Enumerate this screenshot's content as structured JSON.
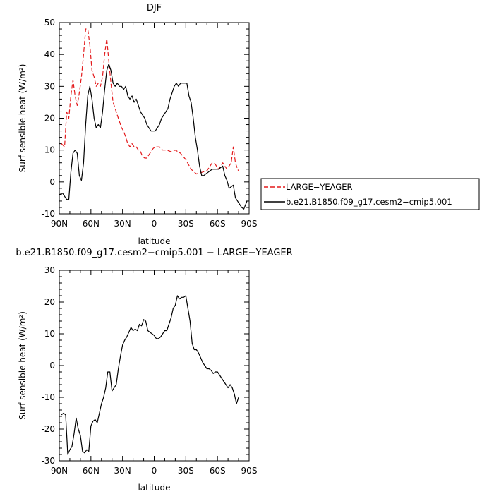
{
  "chart_data": [
    {
      "type": "line",
      "title": "DJF",
      "xlabel": "latitude",
      "ylabel": "Surf sensible heat (W/m²)",
      "xlim": [
        90,
        -90
      ],
      "ylim": [
        -10,
        50
      ],
      "xticks": [
        90,
        60,
        30,
        0,
        -30,
        -60,
        -90
      ],
      "xtick_labels": [
        "90N",
        "60N",
        "30N",
        "0",
        "30S",
        "60S",
        "90S"
      ],
      "yticks": [
        -10,
        0,
        10,
        20,
        30,
        40,
        50
      ],
      "legend_position": "right",
      "series": [
        {
          "name": "LARGE−YEAGER",
          "color": "#e31a1c",
          "dash": "dashed",
          "x": [
            88,
            85,
            83,
            81,
            79,
            77,
            75,
            73,
            71,
            69,
            67,
            65,
            63,
            61,
            59,
            57,
            55,
            53,
            51,
            49,
            47,
            45,
            43,
            41,
            39,
            37,
            35,
            33,
            31,
            29,
            27,
            25,
            23,
            21,
            19,
            17,
            15,
            13,
            11,
            9,
            7,
            5,
            3,
            1,
            -1,
            -3,
            -5,
            -8,
            -12,
            -16,
            -20,
            -25,
            -30,
            -35,
            -40,
            -45,
            -50,
            -53,
            -55,
            -57,
            -59,
            -61,
            -63,
            -65,
            -67,
            -69,
            -71,
            -73,
            -75,
            -77,
            -79,
            -80
          ],
          "y": [
            12,
            11,
            22,
            20,
            27,
            32,
            27,
            24,
            28,
            33,
            40,
            48,
            48,
            43,
            35,
            33,
            30,
            31,
            30,
            33,
            40,
            45,
            38,
            31,
            25,
            23,
            21,
            19,
            17,
            16,
            14,
            12,
            11,
            12,
            11,
            11,
            10,
            9.5,
            8,
            7.5,
            7.5,
            8.5,
            9.5,
            10.5,
            11,
            11,
            11,
            10,
            10,
            9.5,
            10,
            9,
            7,
            4,
            2.5,
            3,
            3.5,
            5,
            6,
            6,
            5,
            4,
            5,
            6,
            5,
            4,
            5,
            6,
            11,
            6,
            4,
            3.5
          ]
        },
        {
          "name": "b.e21.B1850.f09_g17.cesm2−cmip5.001",
          "color": "#000000",
          "dash": "solid",
          "x": [
            90,
            87,
            85,
            83,
            81,
            79,
            77,
            75,
            73,
            71,
            69,
            67,
            65,
            63,
            61,
            59,
            57,
            55,
            53,
            51,
            49,
            47,
            45,
            43,
            41,
            39,
            37,
            35,
            33,
            31,
            29,
            27,
            25,
            23,
            21,
            19,
            17,
            15,
            13,
            11,
            9,
            7,
            5,
            3,
            1,
            -1,
            -3,
            -5,
            -7,
            -9,
            -11,
            -13,
            -15,
            -17,
            -19,
            -21,
            -23,
            -25,
            -27,
            -29,
            -31,
            -33,
            -35,
            -37,
            -39,
            -41,
            -43,
            -45,
            -47,
            -49,
            -51,
            -53,
            -55,
            -57,
            -59,
            -61,
            -63,
            -65,
            -67,
            -69,
            -71,
            -73,
            -75,
            -77,
            -79,
            -81,
            -83,
            -85,
            -88
          ],
          "y": [
            -4,
            -3.5,
            -4.5,
            -5.5,
            -5.5,
            3,
            9,
            10,
            9,
            2,
            0.5,
            6,
            18,
            27,
            30,
            26,
            20,
            17,
            18,
            17,
            22,
            29,
            35,
            37,
            35,
            31,
            30,
            31,
            30,
            30,
            29,
            30,
            27,
            26,
            27,
            25,
            26,
            24,
            22,
            21,
            20,
            18,
            17,
            16,
            16,
            16,
            17,
            18,
            20,
            21,
            22,
            23,
            26,
            28,
            30,
            31,
            30,
            31,
            31,
            31,
            31,
            27,
            25,
            20,
            14,
            10,
            5,
            2,
            2,
            2.5,
            3,
            3.5,
            4,
            4,
            4,
            4,
            4.5,
            5,
            2,
            0.5,
            -2,
            -1.5,
            -1,
            -5,
            -6,
            -7,
            -8,
            -8.5,
            -6
          ]
        }
      ]
    },
    {
      "type": "line",
      "title": "b.e21.B1850.f09_g17.cesm2−cmip5.001 − LARGE−YEAGER",
      "xlabel": "latitude",
      "ylabel": "Surf sensible heat (W/m²)",
      "xlim": [
        90,
        -90
      ],
      "ylim": [
        -30,
        30
      ],
      "xticks": [
        90,
        60,
        30,
        0,
        -30,
        -60,
        -90
      ],
      "xtick_labels": [
        "90N",
        "60N",
        "30N",
        "0",
        "30S",
        "60S",
        "90S"
      ],
      "yticks": [
        -30,
        -20,
        -10,
        0,
        10,
        20,
        30
      ],
      "series": [
        {
          "color": "#000000",
          "dash": "solid",
          "x": [
            88,
            86,
            84,
            82,
            80,
            78,
            76,
            74,
            72,
            70,
            68,
            66,
            64,
            62,
            60,
            58,
            56,
            54,
            52,
            50,
            48,
            46,
            44,
            42,
            40,
            38,
            36,
            34,
            32,
            30,
            28,
            26,
            24,
            22,
            20,
            18,
            16,
            14,
            12,
            10,
            8,
            6,
            4,
            2,
            0,
            -2,
            -4,
            -6,
            -8,
            -10,
            -12,
            -14,
            -16,
            -18,
            -20,
            -22,
            -24,
            -26,
            -28,
            -30,
            -32,
            -34,
            -36,
            -38,
            -40,
            -42,
            -44,
            -46,
            -48,
            -50,
            -52,
            -54,
            -56,
            -58,
            -60,
            -62,
            -64,
            -66,
            -68,
            -70,
            -72,
            -74,
            -76,
            -78,
            -80
          ],
          "y": [
            -15.5,
            -15,
            -15.5,
            -28,
            -26.5,
            -25.5,
            -21.5,
            -16.5,
            -20,
            -22,
            -27,
            -27.5,
            -26.5,
            -27,
            -19,
            -17.5,
            -17,
            -18,
            -15,
            -12,
            -10,
            -7,
            -2,
            -2,
            -8,
            -7,
            -6,
            -1,
            3,
            6.5,
            8,
            9,
            10.5,
            12,
            11,
            11.5,
            11,
            13,
            12.5,
            14.5,
            14,
            11,
            10.5,
            10,
            9.5,
            8.5,
            8.5,
            9,
            10,
            11,
            11,
            13,
            15,
            18,
            19,
            22,
            21,
            21.5,
            21.5,
            22,
            18,
            14,
            7,
            5,
            5,
            4,
            2.5,
            1,
            0,
            -1,
            -1,
            -1.5,
            -2.5,
            -2,
            -2,
            -3,
            -4,
            -5,
            -6,
            -7,
            -6,
            -7,
            -9,
            -12,
            -10
          ]
        }
      ]
    }
  ]
}
